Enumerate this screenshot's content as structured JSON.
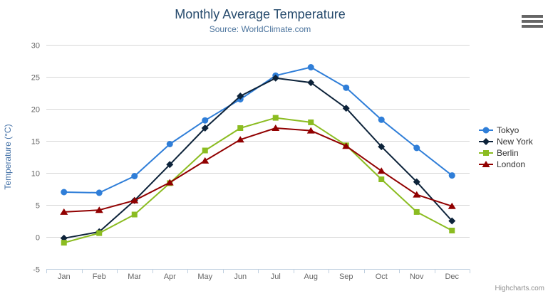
{
  "chart": {
    "title": "Monthly Average Temperature",
    "subtitle": "Source: WorldClimate.com",
    "credits": "Highcharts.com",
    "context_menu_icon": "hamburger-icon"
  },
  "chart_data": {
    "type": "line",
    "title": "Monthly Average Temperature",
    "subtitle": "Source: WorldClimate.com",
    "categories": [
      "Jan",
      "Feb",
      "Mar",
      "Apr",
      "May",
      "Jun",
      "Jul",
      "Aug",
      "Sep",
      "Oct",
      "Nov",
      "Dec"
    ],
    "series": [
      {
        "name": "Tokyo",
        "color": "#2f7ed8",
        "marker": "circle",
        "values": [
          7.0,
          6.9,
          9.5,
          14.5,
          18.2,
          21.5,
          25.2,
          26.5,
          23.3,
          18.3,
          13.9,
          9.6
        ]
      },
      {
        "name": "New York",
        "color": "#0d233a",
        "marker": "diamond",
        "values": [
          -0.2,
          0.8,
          5.7,
          11.3,
          17.0,
          22.0,
          24.8,
          24.1,
          20.1,
          14.1,
          8.6,
          2.5
        ]
      },
      {
        "name": "Berlin",
        "color": "#8bbc21",
        "marker": "square",
        "values": [
          -0.9,
          0.6,
          3.5,
          8.4,
          13.5,
          17.0,
          18.6,
          17.9,
          14.3,
          9.0,
          3.9,
          1.0
        ]
      },
      {
        "name": "London",
        "color": "#910000",
        "marker": "triangle",
        "values": [
          3.9,
          4.2,
          5.7,
          8.5,
          11.9,
          15.2,
          17.0,
          16.6,
          14.2,
          10.3,
          6.6,
          4.8
        ]
      }
    ],
    "xlabel": "",
    "ylabel": "Temperature (°C)",
    "ylim": [
      -5,
      30
    ],
    "ytick_interval": 5,
    "grid": true,
    "legend_position": "right"
  },
  "colors": {
    "title": "#274b6d",
    "subtitle": "#4d759e",
    "axis_label": "#666666",
    "axis_title": "#4572a7",
    "grid": "#d8d8d8",
    "axis_line": "#c0d0e0",
    "legend_text": "#333333",
    "credits": "#909090"
  }
}
